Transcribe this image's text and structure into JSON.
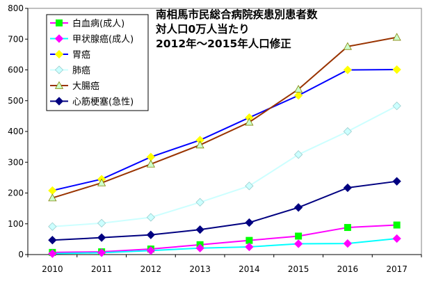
{
  "chart_data": {
    "type": "line",
    "title_lines": [
      "南相馬市民総合病院疾患別患者数",
      "対人口0万人当たり",
      "2012年～2015年人口修正"
    ],
    "xlabel": "",
    "ylabel": "",
    "x": [
      "2010",
      "2011",
      "2012",
      "2013",
      "2014",
      "2015",
      "2016",
      "2017"
    ],
    "ylim": [
      0,
      800
    ],
    "yticks": [
      0,
      100,
      200,
      300,
      400,
      500,
      600,
      700,
      800
    ],
    "grid": false,
    "legend_position": "top-left",
    "series": [
      {
        "name": "白血病(成人)",
        "color": "#ff00ff",
        "marker": "square",
        "marker_color": "#00ff00",
        "values": [
          7,
          9,
          18,
          32,
          46,
          60,
          88,
          96
        ]
      },
      {
        "name": "甲状腺癌(成人)",
        "color": "#00ffff",
        "marker": "diamond",
        "marker_color": "#ff00ff",
        "values": [
          3,
          6,
          13,
          21,
          25,
          35,
          36,
          52
        ]
      },
      {
        "name": "胃癌",
        "color": "#0000ff",
        "marker": "diamond",
        "marker_color": "#ffff00",
        "values": [
          208,
          245,
          317,
          372,
          445,
          517,
          600,
          601
        ]
      },
      {
        "name": "肺癌",
        "color": "#ccffff",
        "marker": "diamond",
        "marker_color": "#ccffff",
        "values": [
          91,
          102,
          121,
          170,
          223,
          325,
          400,
          483
        ]
      },
      {
        "name": "大腸癌",
        "color": "#993300",
        "marker": "triangle",
        "marker_color": "#ccffcc",
        "values": [
          184,
          233,
          294,
          356,
          430,
          537,
          676,
          706
        ]
      },
      {
        "name": "心筋梗塞(急性)",
        "color": "#000080",
        "marker": "diamond",
        "marker_color": "#000080",
        "values": [
          47,
          55,
          64,
          81,
          104,
          153,
          217,
          238
        ]
      }
    ]
  }
}
